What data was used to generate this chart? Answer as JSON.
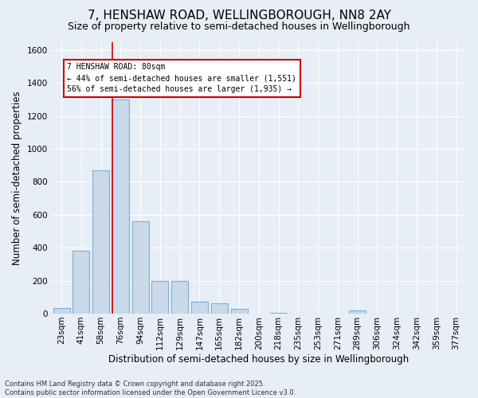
{
  "title": "7, HENSHAW ROAD, WELLINGBOROUGH, NN8 2AY",
  "subtitle": "Size of property relative to semi-detached houses in Wellingborough",
  "xlabel": "Distribution of semi-detached houses by size in Wellingborough",
  "ylabel": "Number of semi-detached properties",
  "categories": [
    "23sqm",
    "41sqm",
    "58sqm",
    "76sqm",
    "94sqm",
    "112sqm",
    "129sqm",
    "147sqm",
    "165sqm",
    "182sqm",
    "200sqm",
    "218sqm",
    "235sqm",
    "253sqm",
    "271sqm",
    "289sqm",
    "306sqm",
    "324sqm",
    "342sqm",
    "359sqm",
    "377sqm"
  ],
  "values": [
    35,
    380,
    870,
    1300,
    560,
    200,
    200,
    75,
    65,
    28,
    0,
    5,
    0,
    0,
    0,
    20,
    0,
    0,
    0,
    0,
    0
  ],
  "bar_color": "#c9d9ea",
  "bar_edge_color": "#7bafd4",
  "vline_color": "#cc0000",
  "vline_x": 2.57,
  "annotation_title": "7 HENSHAW ROAD: 80sqm",
  "annotation_line1": "← 44% of semi-detached houses are smaller (1,551)",
  "annotation_line2": "56% of semi-detached houses are larger (1,935) →",
  "annotation_box_color": "#ffffff",
  "annotation_box_edge": "#cc0000",
  "ylim": [
    0,
    1650
  ],
  "yticks": [
    0,
    200,
    400,
    600,
    800,
    1000,
    1200,
    1400,
    1600
  ],
  "background_color": "#e8eef5",
  "footer1": "Contains HM Land Registry data © Crown copyright and database right 2025.",
  "footer2": "Contains public sector information licensed under the Open Government Licence v3.0.",
  "title_fontsize": 11,
  "subtitle_fontsize": 9,
  "axis_label_fontsize": 8.5,
  "tick_fontsize": 7.5,
  "annotation_fontsize": 7,
  "footer_fontsize": 6
}
